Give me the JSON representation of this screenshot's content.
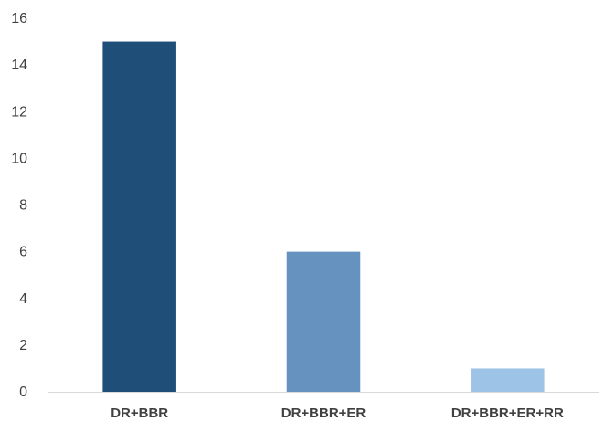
{
  "chart_data": {
    "type": "bar",
    "categories": [
      "DR+BBR",
      "DR+BBR+ER",
      "DR+BBR+ER+RR"
    ],
    "values": [
      15,
      6,
      1
    ],
    "bar_colors": [
      "#1f4e79",
      "#6592be",
      "#9dc3e6"
    ],
    "title": "",
    "xlabel": "",
    "ylabel": "",
    "ylim": [
      0,
      16
    ],
    "yticks": [
      0,
      2,
      4,
      6,
      8,
      10,
      12,
      14,
      16
    ],
    "grid": false,
    "legend": "none"
  }
}
